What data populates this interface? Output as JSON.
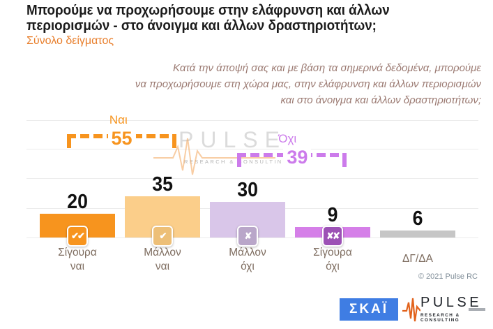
{
  "header": {
    "title_line1": "Μπορούμε να προχωρήσουμε στην ελάφρυνση και άλλων",
    "title_line2": "περιορισμών - στο άνοιγμα και άλλων δραστηριοτήτων;",
    "subtitle": "Σύνολο δείγματος"
  },
  "question": {
    "line1": "Κατά την άποψή σας και με βάση τα σημερινά δεδομένα, μπορούμε",
    "line2": "να προχωρήσουμε στη χώρα μας, στην ελάφρυνση και άλλων περιορισμών",
    "line3": "και στο άνοιγμα και άλλων δραστηριοτήτων;"
  },
  "chart_data": {
    "type": "bar",
    "title": "Μπορούμε να προχωρήσουμε στην ελάφρυνση και άλλων περιορισμών - στο άνοιγμα και άλλων δραστηριοτήτων;",
    "subtitle": "Σύνολο δείγματος",
    "categories": [
      "Σίγουρα ναι",
      "Μάλλον ναι",
      "Μάλλον όχι",
      "Σίγουρα όχι",
      "ΔΓ/ΔΑ"
    ],
    "values": [
      20,
      35,
      30,
      9,
      6
    ],
    "bar_colors": [
      "#F7941E",
      "#FBCE8A",
      "#D9C6E9",
      "#D57FE8",
      "#C6C6C6"
    ],
    "icon_glyphs": [
      "✔✔",
      "✔",
      "✘",
      "✘✘",
      ""
    ],
    "icon_colors": [
      "#F7941E",
      "#EDBF77",
      "#B9A6C9",
      "#9C51B5",
      ""
    ],
    "label_lines": [
      [
        "Σίγουρα",
        "ναι"
      ],
      [
        "Μάλλον",
        "ναι"
      ],
      [
        "Μάλλον",
        "όχι"
      ],
      [
        "Σίγουρα",
        "όχι"
      ],
      [
        "ΔΓ/ΔΑ",
        ""
      ]
    ],
    "ylim": [
      0,
      100
    ],
    "gridline_values": [
      0,
      25,
      50,
      75,
      100
    ],
    "grid": "horizontal-light",
    "legend_position": "none",
    "groups": [
      {
        "label": "Ναι",
        "value": 55,
        "color": "#F7941E",
        "spans": [
          "Σίγουρα ναι",
          "Μάλλον ναι"
        ]
      },
      {
        "label": "Όχι",
        "value": 39,
        "color": "#CC7BEB",
        "spans": [
          "Μάλλον όχι",
          "Σίγουρα όχι"
        ]
      }
    ]
  },
  "watermark": {
    "brand": "PULSE",
    "tagline": "RESEARCH & CONSULTING"
  },
  "footer": {
    "copyright": "© 2021 Pulse RC",
    "skai_logo_text": "ΣΚΑΪ",
    "pulse_logo_text": "PULSE",
    "pulse_logo_tagline": "RESEARCH & CONSULTING"
  }
}
